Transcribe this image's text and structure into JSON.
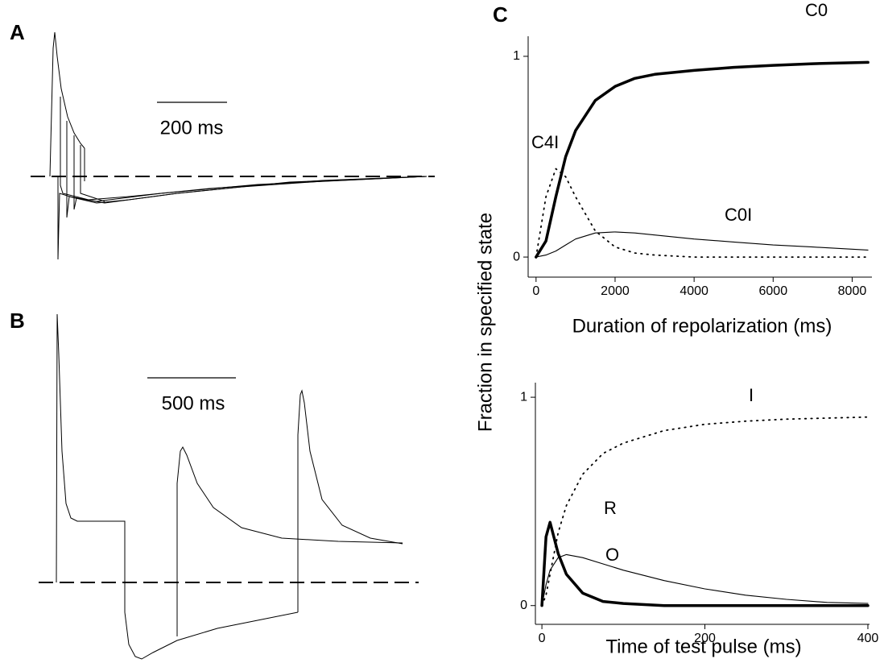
{
  "panels": [
    {
      "label": "A",
      "scale_bar": "200 ms"
    },
    {
      "label": "B",
      "scale_bar": "500 ms"
    },
    {
      "label": "C"
    }
  ],
  "chart_data": [
    {
      "type": "line",
      "ylabel": "Fraction in specified state",
      "xlabel": "Duration of repolarization (ms)",
      "x": [
        0,
        250,
        500,
        750,
        1000,
        1500,
        2000,
        2500,
        3000,
        4000,
        5000,
        6000,
        7000,
        8400
      ],
      "xlim": [
        -200,
        8500
      ],
      "xticks": [
        0,
        2000,
        4000,
        6000,
        8000
      ],
      "ylim": [
        -0.1,
        1.1
      ],
      "yticks": [
        0,
        1
      ],
      "series": [
        {
          "name": "C0",
          "color": "#000000",
          "style": "thick",
          "values": [
            0,
            0.08,
            0.3,
            0.5,
            0.63,
            0.78,
            0.85,
            0.89,
            0.91,
            0.93,
            0.945,
            0.955,
            0.963,
            0.97
          ]
        },
        {
          "name": "C4I",
          "color": "#000000",
          "style": "dotted",
          "values": [
            0,
            0.3,
            0.44,
            0.4,
            0.3,
            0.13,
            0.05,
            0.02,
            0.01,
            0,
            0,
            0,
            0,
            0
          ]
        },
        {
          "name": "C0I",
          "color": "#000000",
          "style": "thin",
          "values": [
            0,
            0.01,
            0.03,
            0.06,
            0.09,
            0.12,
            0.125,
            0.12,
            0.11,
            0.09,
            0.075,
            0.06,
            0.05,
            0.035
          ]
        }
      ]
    },
    {
      "type": "line",
      "xlabel": "Time of test pulse (ms)",
      "x": [
        0,
        5,
        10,
        20,
        30,
        50,
        75,
        100,
        150,
        200,
        250,
        300,
        350,
        400
      ],
      "xlim": [
        -8,
        402
      ],
      "xticks": [
        0,
        200,
        400
      ],
      "ylim": [
        -0.09,
        1.07
      ],
      "yticks": [
        0,
        1
      ],
      "series": [
        {
          "name": "O",
          "color": "#000000",
          "style": "thick",
          "values": [
            0,
            0.33,
            0.4,
            0.25,
            0.15,
            0.06,
            0.02,
            0.01,
            0,
            0,
            0,
            0,
            0,
            0
          ]
        },
        {
          "name": "R",
          "color": "#000000",
          "style": "thin",
          "values": [
            0,
            0.1,
            0.17,
            0.23,
            0.245,
            0.23,
            0.2,
            0.17,
            0.12,
            0.08,
            0.05,
            0.03,
            0.015,
            0.01
          ]
        },
        {
          "name": "I",
          "color": "#000000",
          "style": "dotted",
          "values": [
            0,
            0.05,
            0.15,
            0.35,
            0.48,
            0.63,
            0.73,
            0.78,
            0.84,
            0.87,
            0.885,
            0.895,
            0.9,
            0.905
          ]
        }
      ]
    }
  ]
}
